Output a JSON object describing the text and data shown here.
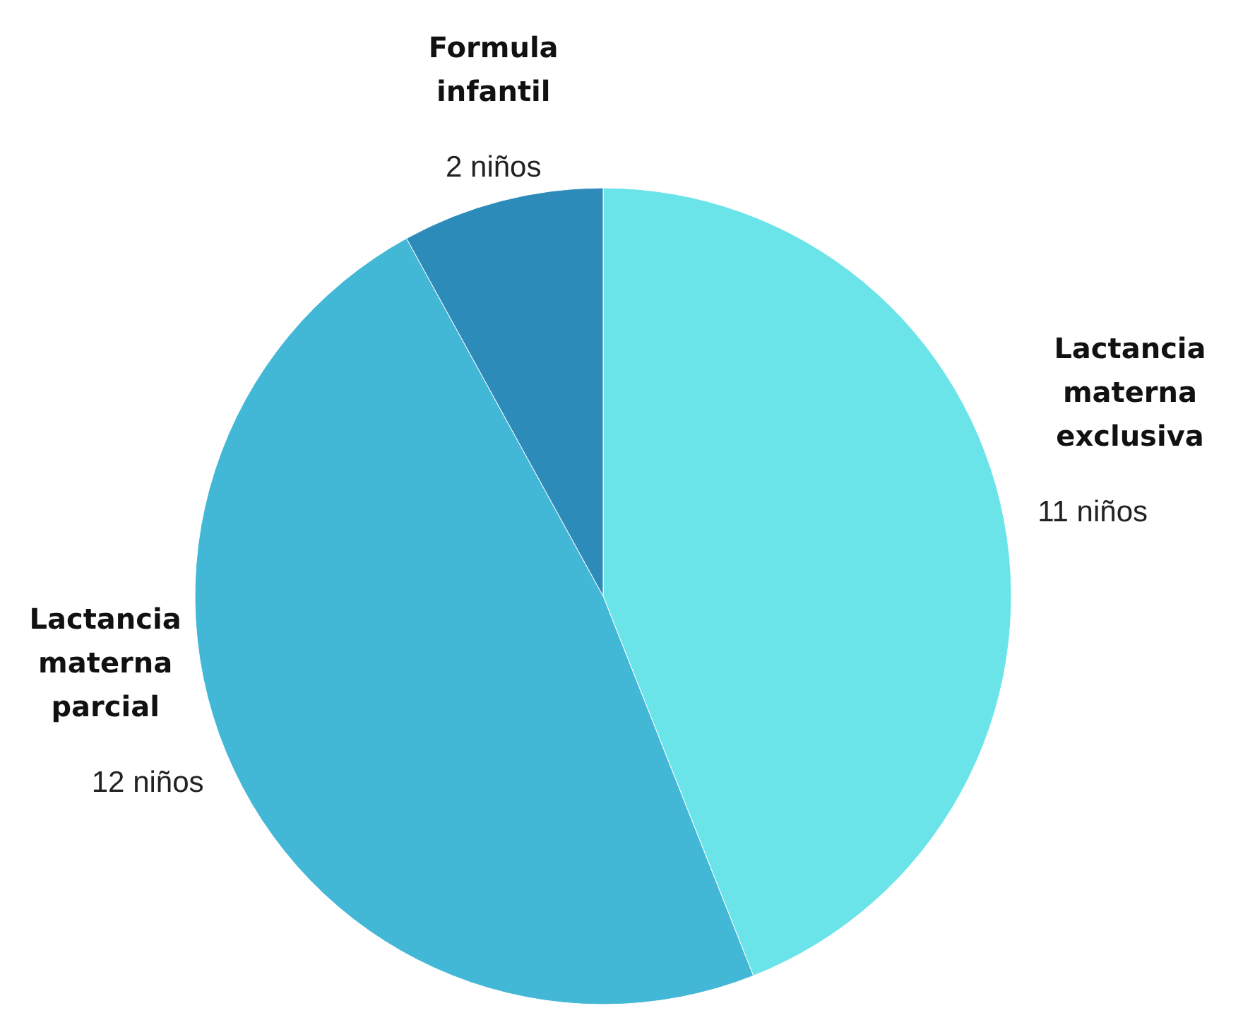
{
  "chart_data": {
    "type": "pie",
    "categories": [
      "Lactancia materna exclusiva",
      "Lactancia materna parcial",
      "Formula infantil"
    ],
    "values": [
      11,
      12,
      2
    ],
    "colors": [
      "#6be4e9",
      "#42b7d6",
      "#2d8bba"
    ],
    "value_labels": [
      "11 niños",
      "12 niños",
      "2 niños"
    ]
  }
}
